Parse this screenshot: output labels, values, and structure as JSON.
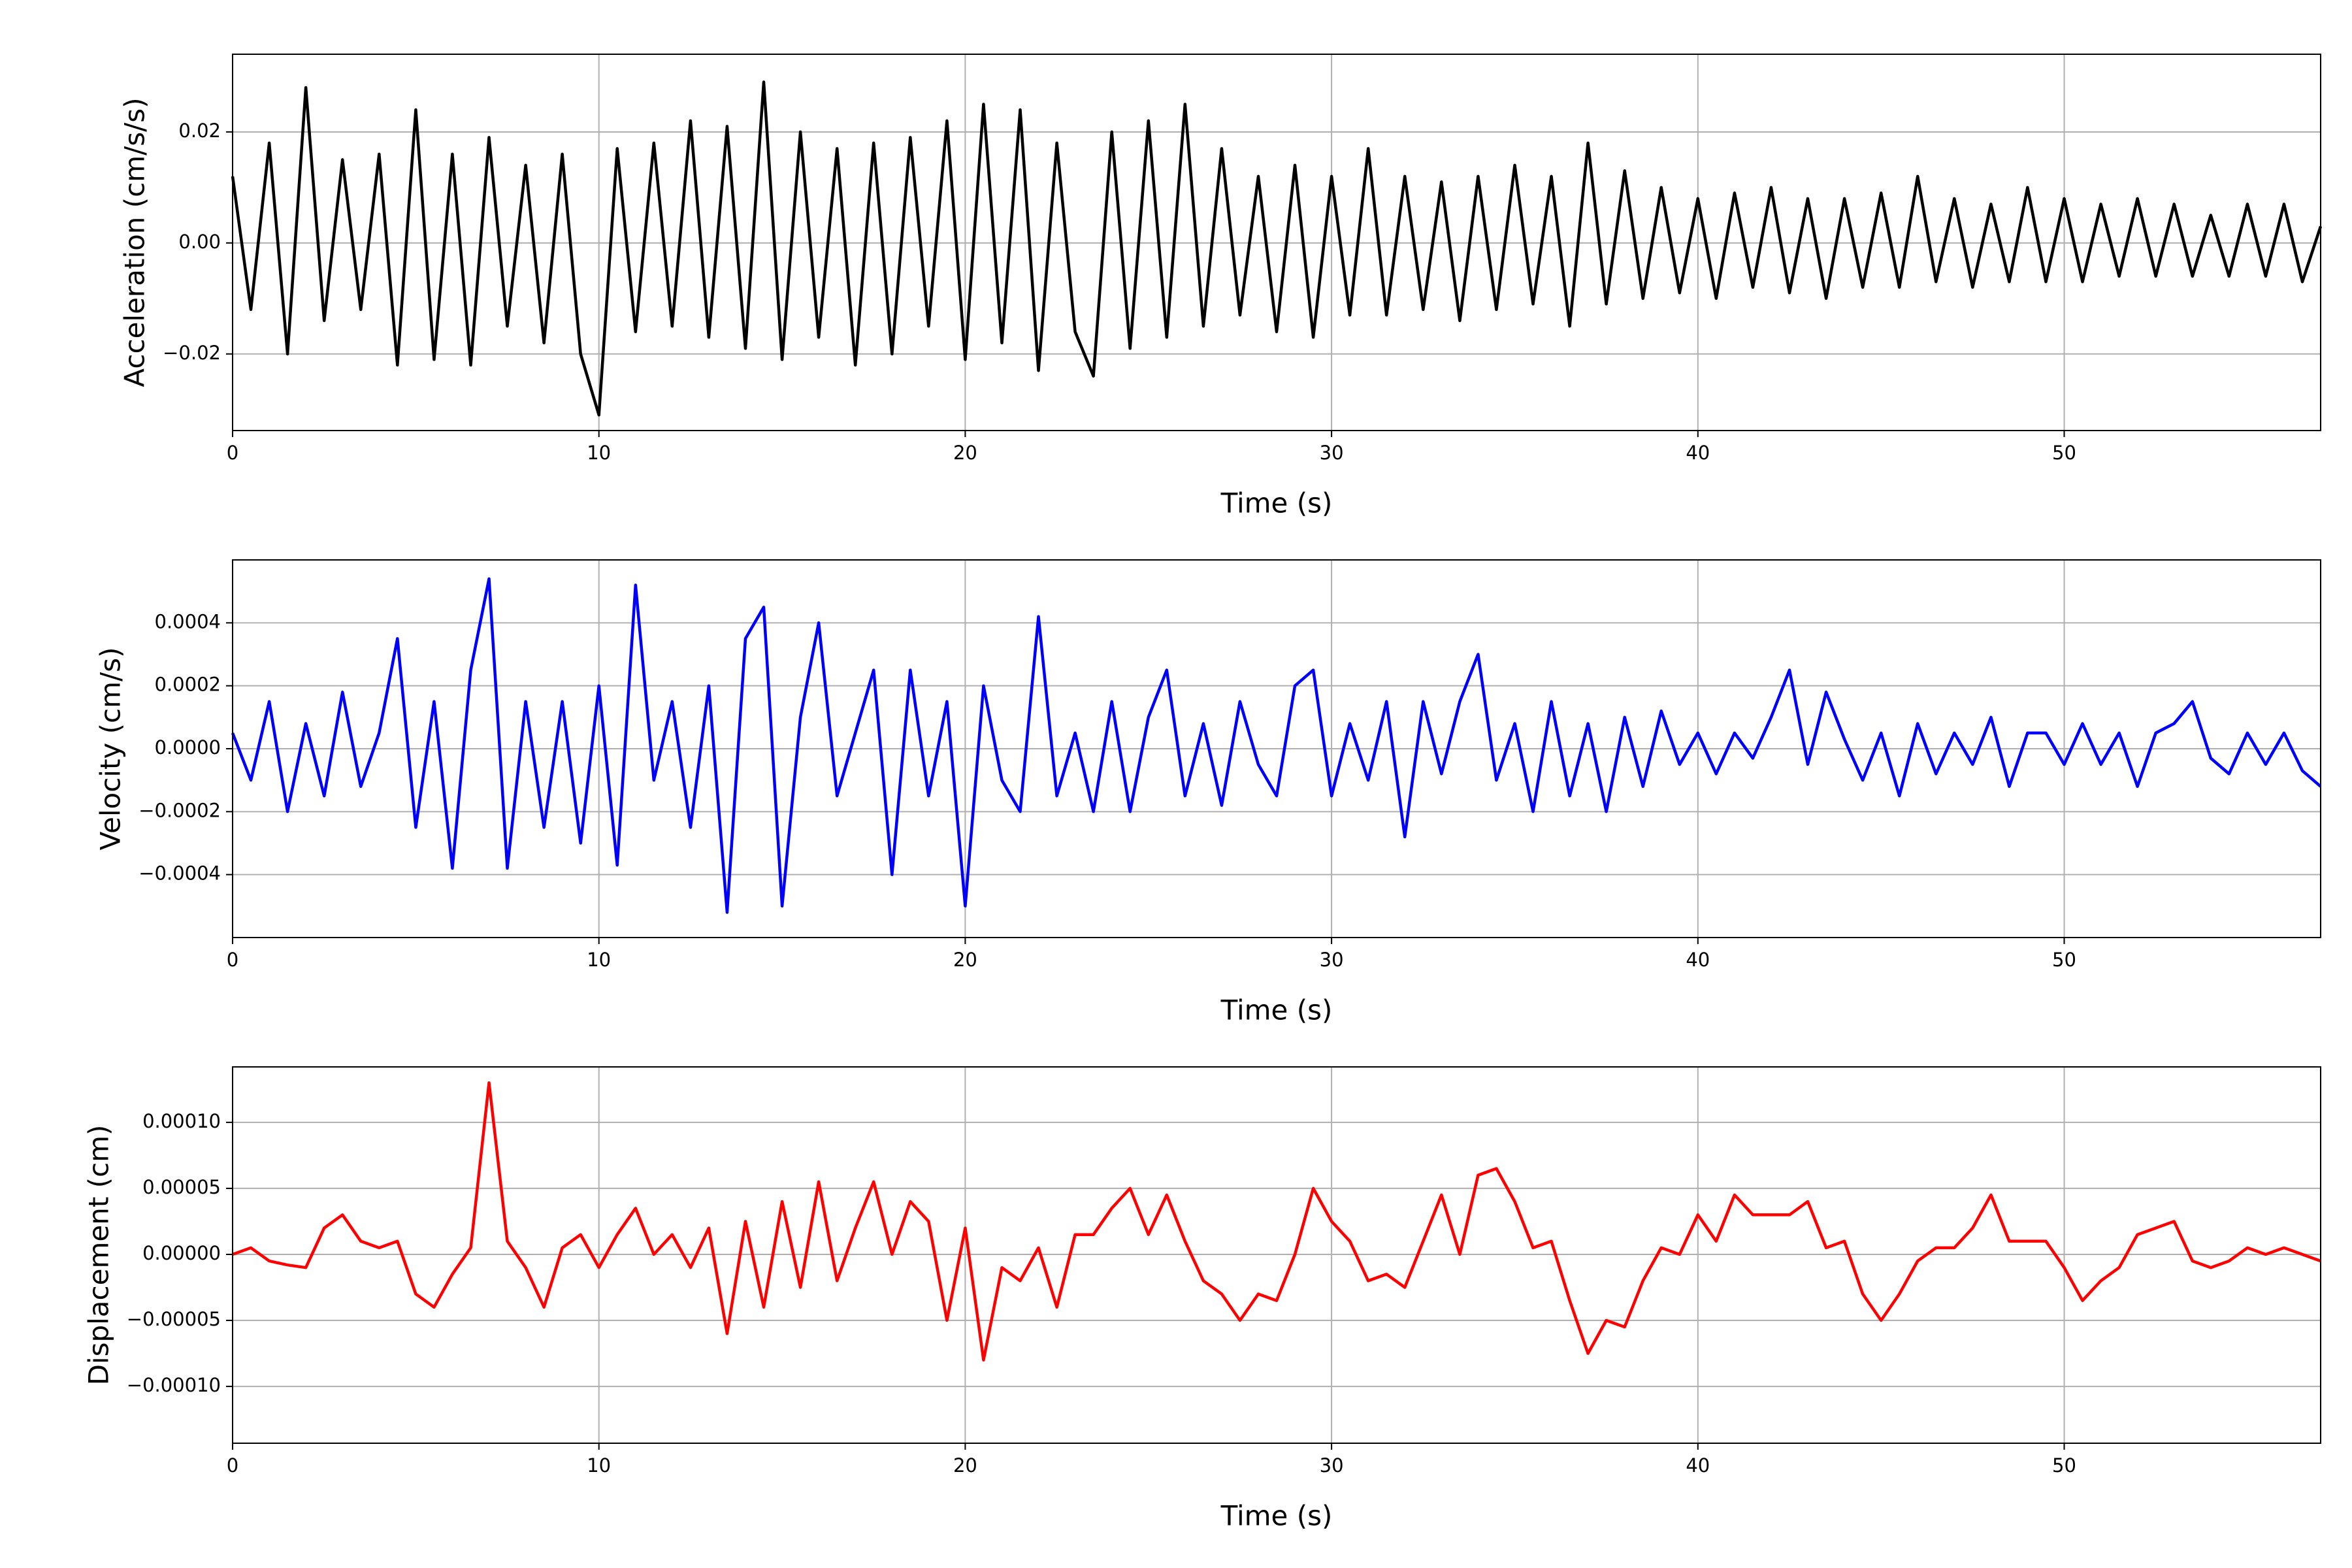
{
  "chart_data": [
    {
      "type": "line",
      "xlabel": "Time (s)",
      "ylabel": "Acceleration (cm/s/s)",
      "x": [
        0,
        0.5,
        1,
        1.5,
        2,
        2.5,
        3,
        3.5,
        4,
        4.5,
        5,
        5.5,
        6,
        6.5,
        7,
        7.5,
        8,
        8.5,
        9,
        9.5,
        10,
        10.5,
        11,
        11.5,
        12,
        12.5,
        13,
        13.5,
        14,
        14.5,
        15,
        15.5,
        16,
        16.5,
        17,
        17.5,
        18,
        18.5,
        19,
        19.5,
        20,
        20.5,
        21,
        21.5,
        22,
        22.5,
        23,
        23.5,
        24,
        24.5,
        25,
        25.5,
        26,
        26.5,
        27,
        27.5,
        28,
        28.5,
        29,
        29.5,
        30,
        30.5,
        31,
        31.5,
        32,
        32.5,
        33,
        33.5,
        34,
        34.5,
        35,
        35.5,
        36,
        36.5,
        37,
        37.5,
        38,
        38.5,
        39,
        39.5,
        40,
        40.5,
        41,
        41.5,
        42,
        42.5,
        43,
        43.5,
        44,
        44.5,
        45,
        45.5,
        46,
        46.5,
        47,
        47.5,
        48,
        48.5,
        49,
        49.5,
        50,
        50.5,
        51,
        51.5,
        52,
        52.5,
        53,
        53.5,
        54,
        54.5,
        55,
        55.5,
        56,
        56.5,
        57
      ],
      "series": [
        {
          "name": "Acceleration",
          "color": "#000000",
          "values": [
            0.012,
            -0.012,
            0.018,
            -0.02,
            0.028,
            -0.014,
            0.015,
            -0.012,
            0.016,
            -0.022,
            0.024,
            -0.021,
            0.016,
            -0.022,
            0.019,
            -0.015,
            0.014,
            -0.018,
            0.016,
            -0.02,
            -0.031,
            0.017,
            -0.016,
            0.018,
            -0.015,
            0.022,
            -0.017,
            0.021,
            -0.019,
            0.029,
            -0.021,
            0.02,
            -0.017,
            0.017,
            -0.022,
            0.018,
            -0.02,
            0.019,
            -0.015,
            0.022,
            -0.021,
            0.025,
            -0.018,
            0.024,
            -0.023,
            0.018,
            -0.016,
            -0.024,
            0.02,
            -0.019,
            0.022,
            -0.017,
            0.025,
            -0.015,
            0.017,
            -0.013,
            0.012,
            -0.016,
            0.014,
            -0.017,
            0.012,
            -0.013,
            0.017,
            -0.013,
            0.012,
            -0.012,
            0.011,
            -0.014,
            0.012,
            -0.012,
            0.014,
            -0.011,
            0.012,
            -0.015,
            0.018,
            -0.011,
            0.013,
            -0.01,
            0.01,
            -0.009,
            0.008,
            -0.01,
            0.009,
            -0.008,
            0.01,
            -0.009,
            0.008,
            -0.01,
            0.008,
            -0.008,
            0.009,
            -0.008,
            0.012,
            -0.007,
            0.008,
            -0.008,
            0.007,
            -0.007,
            0.01,
            -0.007,
            0.008,
            -0.007,
            0.007,
            -0.006,
            0.008,
            -0.006,
            0.007,
            -0.006,
            0.005,
            -0.006,
            0.007,
            -0.006,
            0.007,
            -0.007,
            0.003
          ]
        }
      ],
      "xlim": [
        0,
        57
      ],
      "xticks": [
        0,
        10,
        20,
        30,
        40,
        50
      ],
      "ylim": [
        -0.0338,
        0.034
      ],
      "yticks": [
        {
          "value": -0.02,
          "label": "−0.02"
        },
        {
          "value": 0,
          "label": "0.00"
        },
        {
          "value": 0.02,
          "label": "0.02"
        }
      ],
      "grid": true
    },
    {
      "type": "line",
      "xlabel": "Time (s)",
      "ylabel": "Velocity (cm/s)",
      "x": [
        0,
        0.5,
        1,
        1.5,
        2,
        2.5,
        3,
        3.5,
        4,
        4.5,
        5,
        5.5,
        6,
        6.5,
        7,
        7.5,
        8,
        8.5,
        9,
        9.5,
        10,
        10.5,
        11,
        11.5,
        12,
        12.5,
        13,
        13.5,
        14,
        14.5,
        15,
        15.5,
        16,
        16.5,
        17,
        17.5,
        18,
        18.5,
        19,
        19.5,
        20,
        20.5,
        21,
        21.5,
        22,
        22.5,
        23,
        23.5,
        24,
        24.5,
        25,
        25.5,
        26,
        26.5,
        27,
        27.5,
        28,
        28.5,
        29,
        29.5,
        30,
        30.5,
        31,
        31.5,
        32,
        32.5,
        33,
        33.5,
        34,
        34.5,
        35,
        35.5,
        36,
        36.5,
        37,
        37.5,
        38,
        38.5,
        39,
        39.5,
        40,
        40.5,
        41,
        41.5,
        42,
        42.5,
        43,
        43.5,
        44,
        44.5,
        45,
        45.5,
        46,
        46.5,
        47,
        47.5,
        48,
        48.5,
        49,
        49.5,
        50,
        50.5,
        51,
        51.5,
        52,
        52.5,
        53,
        53.5,
        54,
        54.5,
        55,
        55.5,
        56,
        56.5,
        57
      ],
      "series": [
        {
          "name": "Velocity",
          "color": "#0000ff",
          "values": [
            5e-05,
            -0.0001,
            0.00015,
            -0.0002,
            8e-05,
            -0.00015,
            0.00018,
            -0.00012,
            5e-05,
            0.00035,
            -0.00025,
            0.00015,
            -0.00038,
            0.00025,
            0.00054,
            -0.00038,
            0.00015,
            -0.00025,
            0.00015,
            -0.0003,
            0.0002,
            -0.00037,
            0.00052,
            -0.0001,
            0.00015,
            -0.00025,
            0.0002,
            -0.00052,
            0.00035,
            0.00045,
            -0.0005,
            0.0001,
            0.0004,
            -0.00015,
            5e-05,
            0.00025,
            -0.0004,
            0.00025,
            -0.00015,
            0.00015,
            -0.0005,
            0.0002,
            -0.0001,
            -0.0002,
            0.00042,
            -0.00015,
            5e-05,
            -0.0002,
            0.00015,
            -0.0002,
            0.0001,
            0.00025,
            -0.00015,
            8e-05,
            -0.00018,
            0.00015,
            -5e-05,
            -0.00015,
            0.0002,
            0.00025,
            -0.00015,
            8e-05,
            -0.0001,
            0.00015,
            -0.00028,
            0.00015,
            -8e-05,
            0.00015,
            0.0003,
            -0.0001,
            8e-05,
            -0.0002,
            0.00015,
            -0.00015,
            8e-05,
            -0.0002,
            0.0001,
            -0.00012,
            0.00012,
            -5e-05,
            5e-05,
            -8e-05,
            5e-05,
            -3e-05,
            0.0001,
            0.00025,
            -5e-05,
            0.00018,
            3e-05,
            -0.0001,
            5e-05,
            -0.00015,
            8e-05,
            -8e-05,
            5e-05,
            -5e-05,
            0.0001,
            -0.00012,
            5e-05,
            5e-05,
            -5e-05,
            8e-05,
            -5e-05,
            5e-05,
            -0.00012,
            5e-05,
            8e-05,
            0.00015,
            -3e-05,
            -8e-05,
            5e-05,
            -5e-05,
            5e-05,
            -7e-05,
            -0.00012
          ]
        }
      ],
      "xlim": [
        0,
        57
      ],
      "xticks": [
        0,
        10,
        20,
        30,
        40,
        50
      ],
      "ylim": [
        -0.0006,
        0.0006
      ],
      "yticks": [
        {
          "value": -0.0004,
          "label": "−0.0004"
        },
        {
          "value": -0.0002,
          "label": "−0.0002"
        },
        {
          "value": 0,
          "label": "0.0000"
        },
        0.0002,
        0.0004
      ],
      "grid": true
    },
    {
      "type": "line",
      "xlabel": "Time (s)",
      "ylabel": "Displacement (cm)",
      "x": [
        0,
        0.5,
        1,
        1.5,
        2,
        2.5,
        3,
        3.5,
        4,
        4.5,
        5,
        5.5,
        6,
        6.5,
        7,
        7.5,
        8,
        8.5,
        9,
        9.5,
        10,
        10.5,
        11,
        11.5,
        12,
        12.5,
        13,
        13.5,
        14,
        14.5,
        15,
        15.5,
        16,
        16.5,
        17,
        17.5,
        18,
        18.5,
        19,
        19.5,
        20,
        20.5,
        21,
        21.5,
        22,
        22.5,
        23,
        23.5,
        24,
        24.5,
        25,
        25.5,
        26,
        26.5,
        27,
        27.5,
        28,
        28.5,
        29,
        29.5,
        30,
        30.5,
        31,
        31.5,
        32,
        32.5,
        33,
        33.5,
        34,
        34.5,
        35,
        35.5,
        36,
        36.5,
        37,
        37.5,
        38,
        38.5,
        39,
        39.5,
        40,
        40.5,
        41,
        41.5,
        42,
        42.5,
        43,
        43.5,
        44,
        44.5,
        45,
        45.5,
        46,
        46.5,
        47,
        47.5,
        48,
        48.5,
        49,
        49.5,
        50,
        50.5,
        51,
        51.5,
        52,
        52.5,
        53,
        53.5,
        54,
        54.5,
        55,
        55.5,
        56,
        56.5,
        57
      ],
      "series": [
        {
          "name": "Displacement",
          "color": "#ff0000",
          "values": [
            0,
            5e-06,
            -5e-06,
            -8e-06,
            -1e-05,
            2e-05,
            3e-05,
            1e-05,
            5e-06,
            1e-05,
            -3e-05,
            -4e-05,
            -1.5e-05,
            5e-06,
            0.00013,
            1e-05,
            -1e-05,
            -4e-05,
            5e-06,
            1.5e-05,
            -1e-05,
            1.5e-05,
            3.5e-05,
            0,
            1.5e-05,
            -1e-05,
            2e-05,
            -6e-05,
            2.5e-05,
            -4e-05,
            4e-05,
            -2.5e-05,
            5.5e-05,
            -2e-05,
            2e-05,
            5.5e-05,
            0,
            4e-05,
            2.5e-05,
            -5e-05,
            2e-05,
            -8e-05,
            -1e-05,
            -2e-05,
            5e-06,
            -4e-05,
            1.5e-05,
            1.5e-05,
            3.5e-05,
            5e-05,
            1.5e-05,
            4.5e-05,
            1e-05,
            -2e-05,
            -3e-05,
            -5e-05,
            -3e-05,
            -3.5e-05,
            0,
            5e-05,
            2.5e-05,
            1e-05,
            -2e-05,
            -1.5e-05,
            -2.5e-05,
            1e-05,
            4.5e-05,
            0,
            6e-05,
            6.5e-05,
            4e-05,
            5e-06,
            1e-05,
            -3.5e-05,
            -7.5e-05,
            -5e-05,
            -5.5e-05,
            -2e-05,
            5e-06,
            0,
            3e-05,
            1e-05,
            4.5e-05,
            3e-05,
            3e-05,
            3e-05,
            4e-05,
            5e-06,
            1e-05,
            -3e-05,
            -5e-05,
            -3e-05,
            -5e-06,
            5e-06,
            5e-06,
            2e-05,
            4.5e-05,
            1e-05,
            1e-05,
            1e-05,
            -1e-05,
            -3.5e-05,
            -2e-05,
            -1e-05,
            1.5e-05,
            2e-05,
            2.5e-05,
            -5e-06,
            -1e-05,
            -5e-06,
            5e-06,
            0,
            5e-06,
            0,
            -5e-06
          ]
        }
      ],
      "xlim": [
        0,
        57
      ],
      "xticks": [
        0,
        10,
        20,
        30,
        40,
        50
      ],
      "ylim": [
        -0.000143,
        0.000142
      ],
      "yticks": [
        {
          "value": -0.0001,
          "label": "−0.00010"
        },
        {
          "value": -5e-05,
          "label": "−0.00005"
        },
        {
          "value": 0,
          "label": "0.00000"
        },
        {
          "value": 5e-05,
          "label": "0.00005"
        },
        {
          "value": 0.0001,
          "label": "0.00010"
        }
      ],
      "grid": true
    }
  ]
}
